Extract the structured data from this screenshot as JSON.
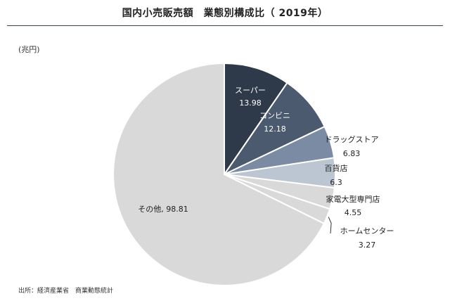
{
  "header": {
    "title": "国内小売販売額　業態別構成比（ 2019年）"
  },
  "unit_label": "(兆円)",
  "source_label": "出所：経済産業省　商業動態統計",
  "chart_data": {
    "type": "pie",
    "title": "国内小売販売額　業態別構成比（ 2019年）",
    "unit": "(兆円)",
    "slices": [
      {
        "label": "スーパー",
        "value_text": "13.98",
        "value": 13.98,
        "color": "#2e3949"
      },
      {
        "label": "コンビニ",
        "value_text": "12.18",
        "value": 12.18,
        "color": "#4b5a6e"
      },
      {
        "label": "ドラッグストア",
        "value_text": "6.83",
        "value": 6.83,
        "color": "#7b8ba3"
      },
      {
        "label": "百貨店",
        "value_text": "6.3",
        "value": 6.3,
        "color": "#bcc6d2"
      },
      {
        "label": "家電大型専門店",
        "value_text": "4.55",
        "value": 4.55,
        "color": "#d9d9d9"
      },
      {
        "label": "ホームセンター",
        "value_text": "3.27",
        "value": 3.27,
        "color": "#d9d9d9"
      },
      {
        "label": "その他",
        "value_text": "98.81",
        "value": 98.81,
        "color": "#d9d9d9"
      }
    ]
  }
}
